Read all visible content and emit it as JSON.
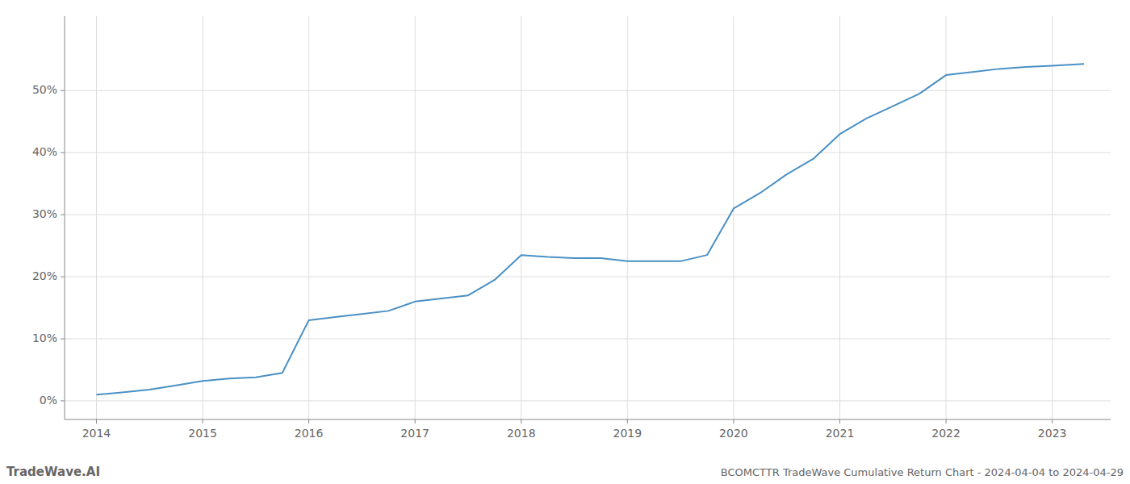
{
  "chart_data": {
    "type": "line",
    "title": "BCOMCTTR TradeWave Cumulative Return Chart - 2024-04-04 to 2024-04-29",
    "annotations": [
      "TradeWave.AI"
    ],
    "color": "#4a90c4",
    "grid": true,
    "x": [
      2014.0,
      2014.2,
      2014.5,
      2014.75,
      2015.0,
      2015.25,
      2015.5,
      2015.75,
      2016.0,
      2016.25,
      2016.5,
      2016.75,
      2017.0,
      2017.25,
      2017.5,
      2017.75,
      2018.0,
      2018.25,
      2018.5,
      2018.75,
      2019.0,
      2019.25,
      2019.5,
      2019.75,
      2020.0,
      2020.25,
      2020.5,
      2020.75,
      2021.0,
      2021.25,
      2021.5,
      2021.75,
      2022.0,
      2022.25,
      2022.5,
      2022.75,
      2023.0,
      2023.3
    ],
    "values": [
      1.0,
      1.3,
      1.8,
      2.5,
      3.2,
      3.6,
      3.8,
      4.5,
      13.0,
      13.5,
      14.0,
      14.5,
      16.0,
      16.5,
      17.0,
      19.5,
      23.5,
      23.2,
      23.0,
      23.0,
      22.5,
      22.5,
      22.5,
      23.5,
      31.0,
      33.5,
      36.5,
      39.0,
      43.0,
      45.5,
      47.5,
      49.5,
      52.5,
      53.0,
      53.5,
      53.8,
      54.0,
      54.3
    ],
    "xlim": [
      2013.7,
      2023.55
    ],
    "ylim": [
      -3,
      62
    ],
    "xticks": [
      2014,
      2015,
      2016,
      2017,
      2018,
      2019,
      2020,
      2021,
      2022,
      2023
    ],
    "yticks": [
      {
        "value": 0,
        "label": "0%"
      },
      {
        "value": 10,
        "label": "10%"
      },
      {
        "value": 20,
        "label": "20%"
      },
      {
        "value": 30,
        "label": "30%"
      },
      {
        "value": 40,
        "label": "40%"
      },
      {
        "value": 50,
        "label": "50%"
      }
    ]
  }
}
